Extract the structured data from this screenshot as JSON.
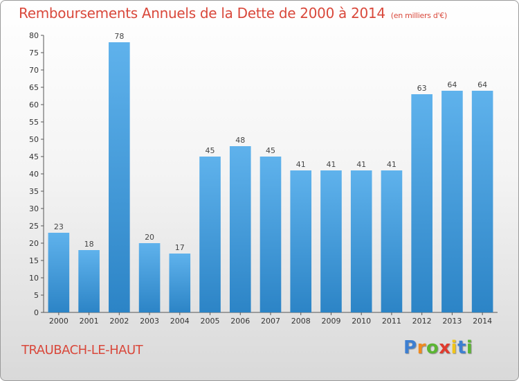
{
  "title": "Remboursements Annuels de la Dette de 2000 à 2014",
  "unit": "(en milliers d'€)",
  "city": "TRAUBACH-LE-HAUT",
  "logo": {
    "letters": [
      "P",
      "r",
      "o",
      "x",
      "i",
      "t",
      "i"
    ],
    "colors": [
      "#3d7fd1",
      "#f08a1e",
      "#5bb533",
      "#e03b2e",
      "#f0c419",
      "#3d7fd1",
      "#5bb533"
    ]
  },
  "colors": {
    "bar_light": "#5fb2ec",
    "bar_dark": "#2c84c6",
    "title": "#d9483b"
  },
  "chart_data": {
    "type": "bar",
    "categories": [
      "2000",
      "2001",
      "2002",
      "2003",
      "2004",
      "2005",
      "2006",
      "2007",
      "2008",
      "2009",
      "2010",
      "2011",
      "2012",
      "2013",
      "2014"
    ],
    "values": [
      23,
      18,
      78,
      20,
      17,
      45,
      48,
      45,
      41,
      41,
      41,
      41,
      63,
      64,
      64
    ],
    "data_labels": [
      "23",
      "18",
      "78",
      "20",
      "17",
      "45",
      "48",
      "45",
      "41",
      "41",
      "41",
      "41",
      "63",
      "64",
      "64"
    ],
    "title": "Remboursements Annuels de la Dette de 2000 à 2014",
    "ylim": [
      0,
      80
    ],
    "yticks": [
      "0",
      "5",
      "10",
      "15",
      "20",
      "25",
      "30",
      "35",
      "40",
      "45",
      "50",
      "55",
      "60",
      "65",
      "70",
      "75",
      "80"
    ],
    "grid": false,
    "legend": "none"
  }
}
